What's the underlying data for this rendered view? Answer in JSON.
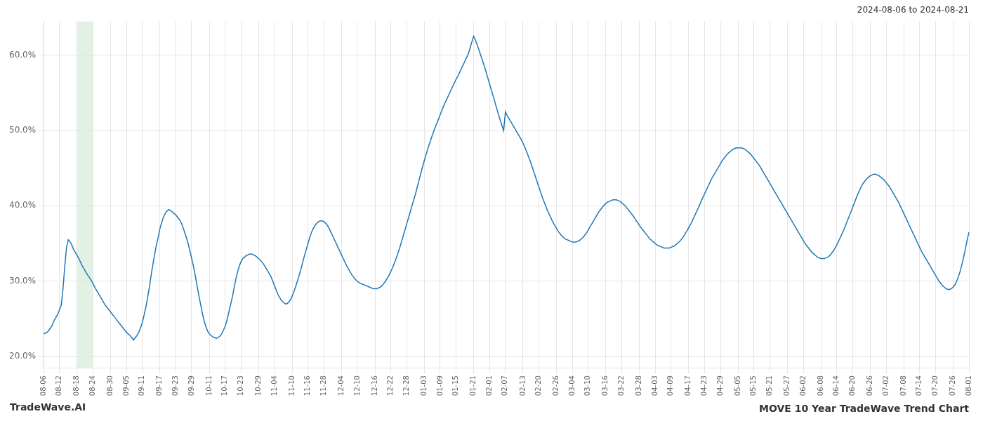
{
  "chart_data": {
    "type": "line",
    "title": "MOVE 10 Year TradeWave Trend Chart",
    "subtitle": "2024-08-06 to 2024-08-21",
    "annotations": [
      "TradeWave.AI"
    ],
    "color": "#1f77b4",
    "grid": true,
    "highlight": {
      "from": "08-18",
      "to": "08-24",
      "color": "#d4edda"
    },
    "ylim": [
      0.185,
      0.645
    ],
    "yticks": [
      {
        "value": 0.2,
        "label": "20.0%"
      },
      {
        "value": 0.3,
        "label": "30.0%"
      },
      {
        "value": 0.4,
        "label": "40.0%"
      },
      {
        "value": 0.5,
        "label": "50.0%"
      },
      {
        "value": 0.6,
        "label": "60.0%"
      }
    ],
    "categories": [
      "08-06",
      null,
      null,
      null,
      null,
      null,
      null,
      null,
      null,
      "08-12",
      null,
      null,
      null,
      null,
      null,
      null,
      null,
      null,
      null,
      "08-18",
      null,
      null,
      null,
      null,
      null,
      null,
      null,
      null,
      "08-24",
      null,
      null,
      null,
      null,
      null,
      null,
      null,
      null,
      null,
      "08-30",
      null,
      null,
      null,
      null,
      null,
      null,
      null,
      null,
      "09-05",
      null,
      null,
      null,
      null,
      null,
      null,
      null,
      null,
      "09-11",
      null,
      null,
      null,
      null,
      null,
      null,
      null,
      null,
      null,
      "09-17",
      null,
      null,
      null,
      null,
      null,
      null,
      null,
      null,
      "09-23",
      null,
      null,
      null,
      null,
      null,
      null,
      null,
      null,
      "09-29",
      null,
      null,
      null,
      null,
      null,
      null,
      null,
      null,
      null,
      "10-11",
      null,
      null,
      null,
      null,
      null,
      null,
      null,
      null,
      "10-17",
      null,
      null,
      null,
      null,
      null,
      null,
      null,
      null,
      "10-23",
      null,
      null,
      null,
      null,
      null,
      null,
      null,
      null,
      null,
      "10-29",
      null,
      null,
      null,
      null,
      null,
      null,
      null,
      null,
      "11-04",
      null,
      null,
      null,
      null,
      null,
      null,
      null,
      null,
      null,
      "11-10",
      null,
      null,
      null,
      null,
      null,
      null,
      null,
      null,
      "11-16",
      null,
      null,
      null,
      null,
      null,
      null,
      null,
      null,
      "11-28",
      null,
      null,
      null,
      null,
      null,
      null,
      null,
      null,
      null,
      "12-04",
      null,
      null,
      null,
      null,
      null,
      null,
      null,
      null,
      "12-10",
      null,
      null,
      null,
      null,
      null,
      null,
      null,
      null,
      null,
      "12-16",
      null,
      null,
      null,
      null,
      null,
      null,
      null,
      null,
      "12-22",
      null,
      null,
      null,
      null,
      null,
      null,
      null,
      null,
      "12-28",
      null,
      null,
      null,
      null,
      null,
      null,
      null,
      null,
      null,
      "01-03",
      null,
      null,
      null,
      null,
      null,
      null,
      null,
      null,
      "01-09",
      null,
      null,
      null,
      null,
      null,
      null,
      null,
      null,
      "01-15",
      null,
      null,
      null,
      null,
      null,
      null,
      null,
      null,
      null,
      "01-21",
      null,
      null,
      null,
      null,
      null,
      null,
      null,
      null,
      "02-01",
      null,
      null,
      null,
      null,
      null,
      null,
      null,
      null,
      "02-07",
      null,
      null,
      null,
      null,
      null,
      null,
      null,
      null,
      null,
      "02-13",
      null,
      null,
      null,
      null,
      null,
      null,
      null,
      null,
      "02-20",
      null,
      null,
      null,
      null,
      null,
      null,
      null,
      null,
      null,
      "02-26",
      null,
      null,
      null,
      null,
      null,
      null,
      null,
      null,
      "03-04",
      null,
      null,
      null,
      null,
      null,
      null,
      null,
      null,
      "03-10",
      null,
      null,
      null,
      null,
      null,
      null,
      null,
      null,
      null,
      "03-16",
      null,
      null,
      null,
      null,
      null,
      null,
      null,
      null,
      "03-22",
      null,
      null,
      null,
      null,
      null,
      null,
      null,
      null,
      null,
      "03-28",
      null,
      null,
      null,
      null,
      null,
      null,
      null,
      null,
      "04-03",
      null,
      null,
      null,
      null,
      null,
      null,
      null,
      null,
      "04-09",
      null,
      null,
      null,
      null,
      null,
      null,
      null,
      null,
      null,
      "04-17",
      null,
      null,
      null,
      null,
      null,
      null,
      null,
      null,
      "04-23",
      null,
      null,
      null,
      null,
      null,
      null,
      null,
      null,
      "04-29",
      null,
      null,
      null,
      null,
      null,
      null,
      null,
      null,
      null,
      "05-05",
      null,
      null,
      null,
      null,
      null,
      null,
      null,
      null,
      "05-15",
      null,
      null,
      null,
      null,
      null,
      null,
      null,
      null,
      "05-21",
      null,
      null,
      null,
      null,
      null,
      null,
      null,
      null,
      null,
      "05-27",
      null,
      null,
      null,
      null,
      null,
      null,
      null,
      null,
      "06-02",
      null,
      null,
      null,
      null,
      null,
      null,
      null,
      null,
      null,
      "06-08",
      null,
      null,
      null,
      null,
      null,
      null,
      null,
      null,
      "06-14",
      null,
      null,
      null,
      null,
      null,
      null,
      null,
      null,
      "06-20",
      null,
      null,
      null,
      null,
      null,
      null,
      null,
      null,
      null,
      "06-26",
      null,
      null,
      null,
      null,
      null,
      null,
      null,
      null,
      "07-02",
      null,
      null,
      null,
      null,
      null,
      null,
      null,
      null,
      null,
      "07-08",
      null,
      null,
      null,
      null,
      null,
      null,
      null,
      null,
      "07-14",
      null,
      null,
      null,
      null,
      null,
      null,
      null,
      null,
      "07-20",
      null,
      null,
      null,
      null,
      null,
      null,
      null,
      null,
      null,
      "07-26",
      null,
      null,
      null,
      null,
      null,
      null,
      null,
      null,
      "08-01"
    ],
    "values": [
      0.23,
      0.231,
      0.232,
      0.235,
      0.238,
      0.242,
      0.248,
      0.252,
      0.256,
      0.262,
      0.268,
      0.29,
      0.32,
      0.345,
      0.355,
      0.352,
      0.348,
      0.342,
      0.338,
      0.334,
      0.33,
      0.325,
      0.32,
      0.316,
      0.312,
      0.308,
      0.305,
      0.301,
      0.297,
      0.292,
      0.288,
      0.284,
      0.28,
      0.276,
      0.272,
      0.268,
      0.265,
      0.262,
      0.259,
      0.256,
      0.253,
      0.25,
      0.247,
      0.244,
      0.241,
      0.238,
      0.235,
      0.232,
      0.23,
      0.228,
      0.225,
      0.222,
      0.225,
      0.228,
      0.232,
      0.238,
      0.245,
      0.255,
      0.265,
      0.278,
      0.292,
      0.308,
      0.322,
      0.336,
      0.348,
      0.358,
      0.37,
      0.378,
      0.385,
      0.39,
      0.393,
      0.395,
      0.394,
      0.392,
      0.39,
      0.388,
      0.385,
      0.382,
      0.378,
      0.372,
      0.365,
      0.358,
      0.35,
      0.34,
      0.33,
      0.32,
      0.308,
      0.295,
      0.282,
      0.27,
      0.258,
      0.248,
      0.24,
      0.234,
      0.23,
      0.228,
      0.226,
      0.225,
      0.224,
      0.225,
      0.227,
      0.23,
      0.235,
      0.24,
      0.248,
      0.258,
      0.268,
      0.278,
      0.29,
      0.302,
      0.312,
      0.32,
      0.326,
      0.33,
      0.332,
      0.334,
      0.335,
      0.336,
      0.336,
      0.335,
      0.334,
      0.332,
      0.33,
      0.328,
      0.325,
      0.322,
      0.318,
      0.314,
      0.31,
      0.306,
      0.3,
      0.294,
      0.288,
      0.282,
      0.278,
      0.274,
      0.272,
      0.27,
      0.27,
      0.272,
      0.275,
      0.28,
      0.286,
      0.293,
      0.3,
      0.308,
      0.316,
      0.325,
      0.334,
      0.342,
      0.35,
      0.358,
      0.365,
      0.37,
      0.374,
      0.377,
      0.379,
      0.38,
      0.38,
      0.379,
      0.377,
      0.374,
      0.37,
      0.365,
      0.36,
      0.355,
      0.35,
      0.345,
      0.34,
      0.335,
      0.33,
      0.325,
      0.32,
      0.316,
      0.312,
      0.308,
      0.305,
      0.302,
      0.3,
      0.298,
      0.297,
      0.296,
      0.295,
      0.294,
      0.293,
      0.292,
      0.291,
      0.29,
      0.29,
      0.29,
      0.291,
      0.292,
      0.294,
      0.297,
      0.3,
      0.304,
      0.308,
      0.313,
      0.318,
      0.324,
      0.33,
      0.337,
      0.344,
      0.352,
      0.36,
      0.368,
      0.376,
      0.384,
      0.392,
      0.4,
      0.408,
      0.416,
      0.425,
      0.434,
      0.443,
      0.452,
      0.46,
      0.468,
      0.476,
      0.483,
      0.49,
      0.497,
      0.503,
      0.509,
      0.515,
      0.521,
      0.527,
      0.533,
      0.538,
      0.543,
      0.548,
      0.553,
      0.558,
      0.563,
      0.568,
      0.572,
      0.577,
      0.582,
      0.587,
      0.592,
      0.597,
      0.602,
      0.61,
      0.618,
      0.625,
      0.62,
      0.614,
      0.607,
      0.6,
      0.593,
      0.586,
      0.578,
      0.57,
      0.562,
      0.554,
      0.546,
      0.538,
      0.53,
      0.522,
      0.514,
      0.507,
      0.5,
      0.525,
      0.52,
      0.516,
      0.512,
      0.508,
      0.504,
      0.5,
      0.496,
      0.492,
      0.488,
      0.483,
      0.478,
      0.472,
      0.466,
      0.46,
      0.453,
      0.446,
      0.439,
      0.432,
      0.425,
      0.418,
      0.411,
      0.405,
      0.399,
      0.393,
      0.388,
      0.383,
      0.378,
      0.374,
      0.37,
      0.366,
      0.363,
      0.36,
      0.358,
      0.356,
      0.355,
      0.354,
      0.353,
      0.352,
      0.352,
      0.352,
      0.353,
      0.354,
      0.356,
      0.358,
      0.361,
      0.364,
      0.368,
      0.372,
      0.376,
      0.38,
      0.384,
      0.388,
      0.392,
      0.395,
      0.398,
      0.401,
      0.403,
      0.405,
      0.406,
      0.407,
      0.408,
      0.408,
      0.408,
      0.407,
      0.406,
      0.404,
      0.402,
      0.4,
      0.397,
      0.394,
      0.391,
      0.388,
      0.385,
      0.381,
      0.378,
      0.374,
      0.371,
      0.368,
      0.365,
      0.362,
      0.359,
      0.356,
      0.354,
      0.352,
      0.35,
      0.348,
      0.347,
      0.346,
      0.345,
      0.344,
      0.344,
      0.344,
      0.344,
      0.345,
      0.346,
      0.347,
      0.349,
      0.351,
      0.353,
      0.356,
      0.359,
      0.363,
      0.367,
      0.371,
      0.375,
      0.38,
      0.385,
      0.39,
      0.395,
      0.4,
      0.406,
      0.411,
      0.416,
      0.421,
      0.426,
      0.431,
      0.436,
      0.44,
      0.444,
      0.448,
      0.452,
      0.456,
      0.46,
      0.463,
      0.466,
      0.469,
      0.471,
      0.473,
      0.475,
      0.476,
      0.477,
      0.477,
      0.477,
      0.477,
      0.476,
      0.475,
      0.473,
      0.471,
      0.469,
      0.466,
      0.463,
      0.46,
      0.457,
      0.454,
      0.45,
      0.446,
      0.442,
      0.438,
      0.434,
      0.43,
      0.426,
      0.422,
      0.418,
      0.414,
      0.41,
      0.406,
      0.402,
      0.398,
      0.394,
      0.39,
      0.386,
      0.382,
      0.378,
      0.374,
      0.37,
      0.366,
      0.362,
      0.358,
      0.354,
      0.35,
      0.347,
      0.344,
      0.341,
      0.338,
      0.336,
      0.334,
      0.332,
      0.331,
      0.33,
      0.33,
      0.33,
      0.331,
      0.332,
      0.334,
      0.337,
      0.34,
      0.344,
      0.348,
      0.353,
      0.358,
      0.363,
      0.368,
      0.374,
      0.38,
      0.386,
      0.392,
      0.398,
      0.404,
      0.41,
      0.416,
      0.421,
      0.426,
      0.43,
      0.433,
      0.436,
      0.438,
      0.44,
      0.441,
      0.442,
      0.442,
      0.441,
      0.44,
      0.438,
      0.436,
      0.434,
      0.431,
      0.428,
      0.425,
      0.421,
      0.417,
      0.413,
      0.409,
      0.405,
      0.4,
      0.395,
      0.39,
      0.385,
      0.38,
      0.375,
      0.37,
      0.365,
      0.36,
      0.355,
      0.35,
      0.345,
      0.34,
      0.336,
      0.332,
      0.328,
      0.324,
      0.32,
      0.316,
      0.312,
      0.308,
      0.304,
      0.3,
      0.297,
      0.294,
      0.292,
      0.29,
      0.289,
      0.289,
      0.29,
      0.292,
      0.295,
      0.3,
      0.306,
      0.313,
      0.322,
      0.332,
      0.343,
      0.355,
      0.365
    ]
  }
}
